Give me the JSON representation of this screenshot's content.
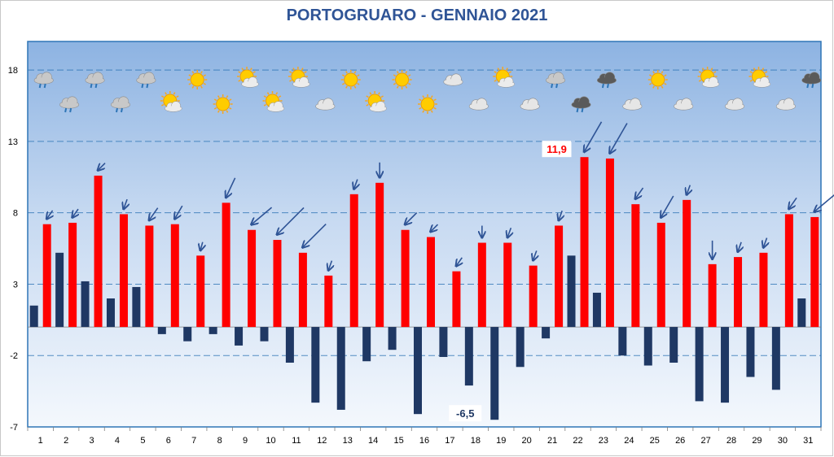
{
  "chart_data": {
    "type": "bar",
    "title": "PORTOGRUARO - GENNAIO 2021",
    "xlabel": "",
    "ylabel": "",
    "ylim": [
      -7,
      20
    ],
    "yticks": [
      18,
      13,
      8,
      3,
      -2,
      -7
    ],
    "grid": true,
    "categories": [
      "1",
      "2",
      "3",
      "4",
      "5",
      "6",
      "7",
      "8",
      "9",
      "10",
      "11",
      "12",
      "13",
      "14",
      "15",
      "16",
      "17",
      "18",
      "19",
      "20",
      "21",
      "22",
      "23",
      "24",
      "25",
      "26",
      "27",
      "28",
      "29",
      "30",
      "31"
    ],
    "series": [
      {
        "color": "#1f3864",
        "values": [
          1.5,
          5.2,
          3.2,
          2.0,
          2.8,
          -0.5,
          -1.0,
          -0.5,
          -1.3,
          -1.0,
          -2.5,
          -5.3,
          -5.8,
          -2.4,
          -1.6,
          -6.1,
          -2.1,
          -4.1,
          -6.5,
          -2.8,
          -0.8,
          5.0,
          2.4,
          -2.0,
          -2.7,
          -2.5,
          -5.2,
          -5.3,
          -3.5,
          -4.4,
          2.0
        ]
      },
      {
        "color": "#ff0000",
        "values": [
          7.2,
          7.3,
          10.6,
          7.9,
          7.1,
          7.2,
          5.0,
          8.7,
          6.8,
          6.1,
          5.2,
          3.6,
          9.3,
          10.1,
          6.8,
          6.3,
          3.9,
          5.9,
          5.9,
          4.3,
          7.1,
          11.9,
          11.8,
          8.6,
          7.3,
          8.9,
          4.4,
          4.9,
          5.2,
          7.9,
          7.7
        ]
      }
    ],
    "annotations": {
      "max_label": "11,9",
      "min_label": "-6,5"
    },
    "weather_icons": [
      "rain",
      "rain",
      "rain",
      "rain",
      "rain",
      "partly-cloudy",
      "sunny",
      "sunny",
      "partly-cloudy",
      "partly-cloudy",
      "partly-cloudy",
      "cloudy",
      "sunny",
      "partly-cloudy",
      "sunny",
      "sunny",
      "cloudy",
      "cloudy",
      "partly-cloudy",
      "cloudy",
      "rain",
      "storm",
      "storm",
      "cloudy",
      "sunny",
      "cloudy",
      "partly-cloudy",
      "cloudy",
      "partly-cloudy",
      "cloudy",
      "storm"
    ],
    "wind_arrows": [
      {
        "len": 12,
        "ang": 215
      },
      {
        "len": 12,
        "ang": 215
      },
      {
        "len": 12,
        "ang": 225
      },
      {
        "len": 12,
        "ang": 200
      },
      {
        "len": 18,
        "ang": 215
      },
      {
        "len": 18,
        "ang": 210
      },
      {
        "len": 10,
        "ang": 195
      },
      {
        "len": 26,
        "ang": 205
      },
      {
        "len": 32,
        "ang": 230
      },
      {
        "len": 46,
        "ang": 225
      },
      {
        "len": 40,
        "ang": 225
      },
      {
        "len": 12,
        "ang": 200
      },
      {
        "len": 12,
        "ang": 200
      },
      {
        "len": 18,
        "ang": 180
      },
      {
        "len": 20,
        "ang": 225
      },
      {
        "len": 12,
        "ang": 225
      },
      {
        "len": 12,
        "ang": 215
      },
      {
        "len": 14,
        "ang": 180
      },
      {
        "len": 12,
        "ang": 200
      },
      {
        "len": 12,
        "ang": 200
      },
      {
        "len": 12,
        "ang": 200
      },
      {
        "len": 42,
        "ang": 210
      },
      {
        "len": 42,
        "ang": 210
      },
      {
        "len": 16,
        "ang": 215
      },
      {
        "len": 30,
        "ang": 210
      },
      {
        "len": 12,
        "ang": 200
      },
      {
        "len": 22,
        "ang": 180
      },
      {
        "len": 12,
        "ang": 200
      },
      {
        "len": 12,
        "ang": 200
      },
      {
        "len": 16,
        "ang": 215
      },
      {
        "len": 48,
        "ang": 230
      }
    ]
  }
}
